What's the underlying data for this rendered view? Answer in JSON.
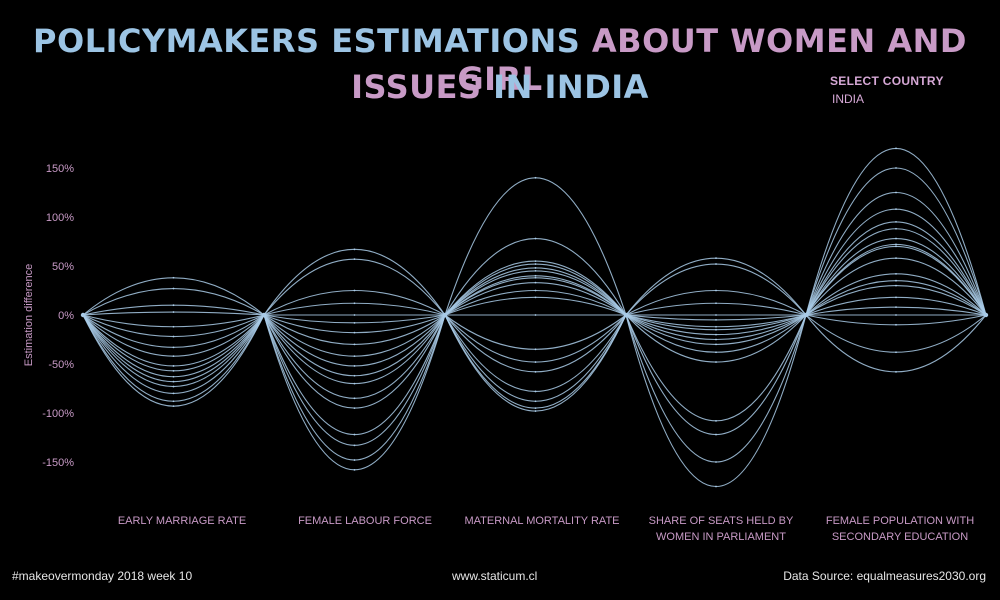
{
  "header": {
    "title_line1_part1": "POLICYMAKERS ESTIMATIONS",
    "title_line1_part2": "ABOUT WOMEN AND GIRL",
    "title_line2_part1": "ISSUES",
    "title_line2_part2": "IN INDIA"
  },
  "filter": {
    "label": "SELECT COUNTRY",
    "value": "INDIA"
  },
  "footer": {
    "left": "#makeovermonday 2018 week 10",
    "center": "www.staticum.cl",
    "right": "Data Source: equalmeasures2030.org"
  },
  "colors": {
    "blue": "#9cc4e4",
    "pink": "#c89ac6",
    "line": "#a9cbe8",
    "background": "#000000"
  },
  "chart_data": {
    "type": "line",
    "ylabel": "Estimation difference",
    "yticks": [
      "150%",
      "100%",
      "50%",
      "0%",
      "-50%",
      "-100%",
      "-150%"
    ],
    "ytick_values": [
      150,
      100,
      50,
      0,
      -50,
      -100,
      -150
    ],
    "ylim": [
      -175,
      175
    ],
    "categories": [
      "EARLY MARRIAGE RATE",
      "FEMALE LABOUR FORCE",
      "MATERNAL MORTALITY RATE",
      "SHARE OF SEATS  HELD BY WOMEN IN PARLIAMENT",
      "FEMALE POPULATION WITH SECONDARY EDUCATION"
    ],
    "category_lines": [
      [
        "EARLY MARRIAGE RATE"
      ],
      [
        "FEMALE LABOUR FORCE"
      ],
      [
        "MATERNAL MORTALITY RATE"
      ],
      [
        "SHARE OF SEATS  HELD BY",
        "WOMEN IN PARLIAMENT"
      ],
      [
        "FEMALE POPULATION WITH",
        "SECONDARY EDUCATION"
      ]
    ],
    "estimation_differences": [
      [
        38,
        27,
        10,
        3,
        -12,
        -22,
        -33,
        -42,
        -52,
        -57,
        -63,
        -68,
        -73,
        -80,
        -88,
        -93
      ],
      [
        67,
        57,
        25,
        12,
        0,
        -8,
        -18,
        -30,
        -42,
        -52,
        -62,
        -70,
        -85,
        -95,
        -122,
        -133,
        -148,
        -158
      ],
      [
        140,
        78,
        55,
        52,
        48,
        45,
        40,
        38,
        33,
        25,
        18,
        0,
        -35,
        -48,
        -58,
        -78,
        -88,
        -95,
        -98
      ],
      [
        58,
        52,
        25,
        12,
        0,
        -5,
        -12,
        -15,
        -20,
        -25,
        -30,
        -38,
        -48,
        -108,
        -122,
        -150,
        -175
      ],
      [
        170,
        150,
        125,
        108,
        95,
        88,
        78,
        72,
        70,
        58,
        42,
        35,
        30,
        18,
        8,
        0,
        -10,
        -38,
        -58
      ]
    ]
  }
}
